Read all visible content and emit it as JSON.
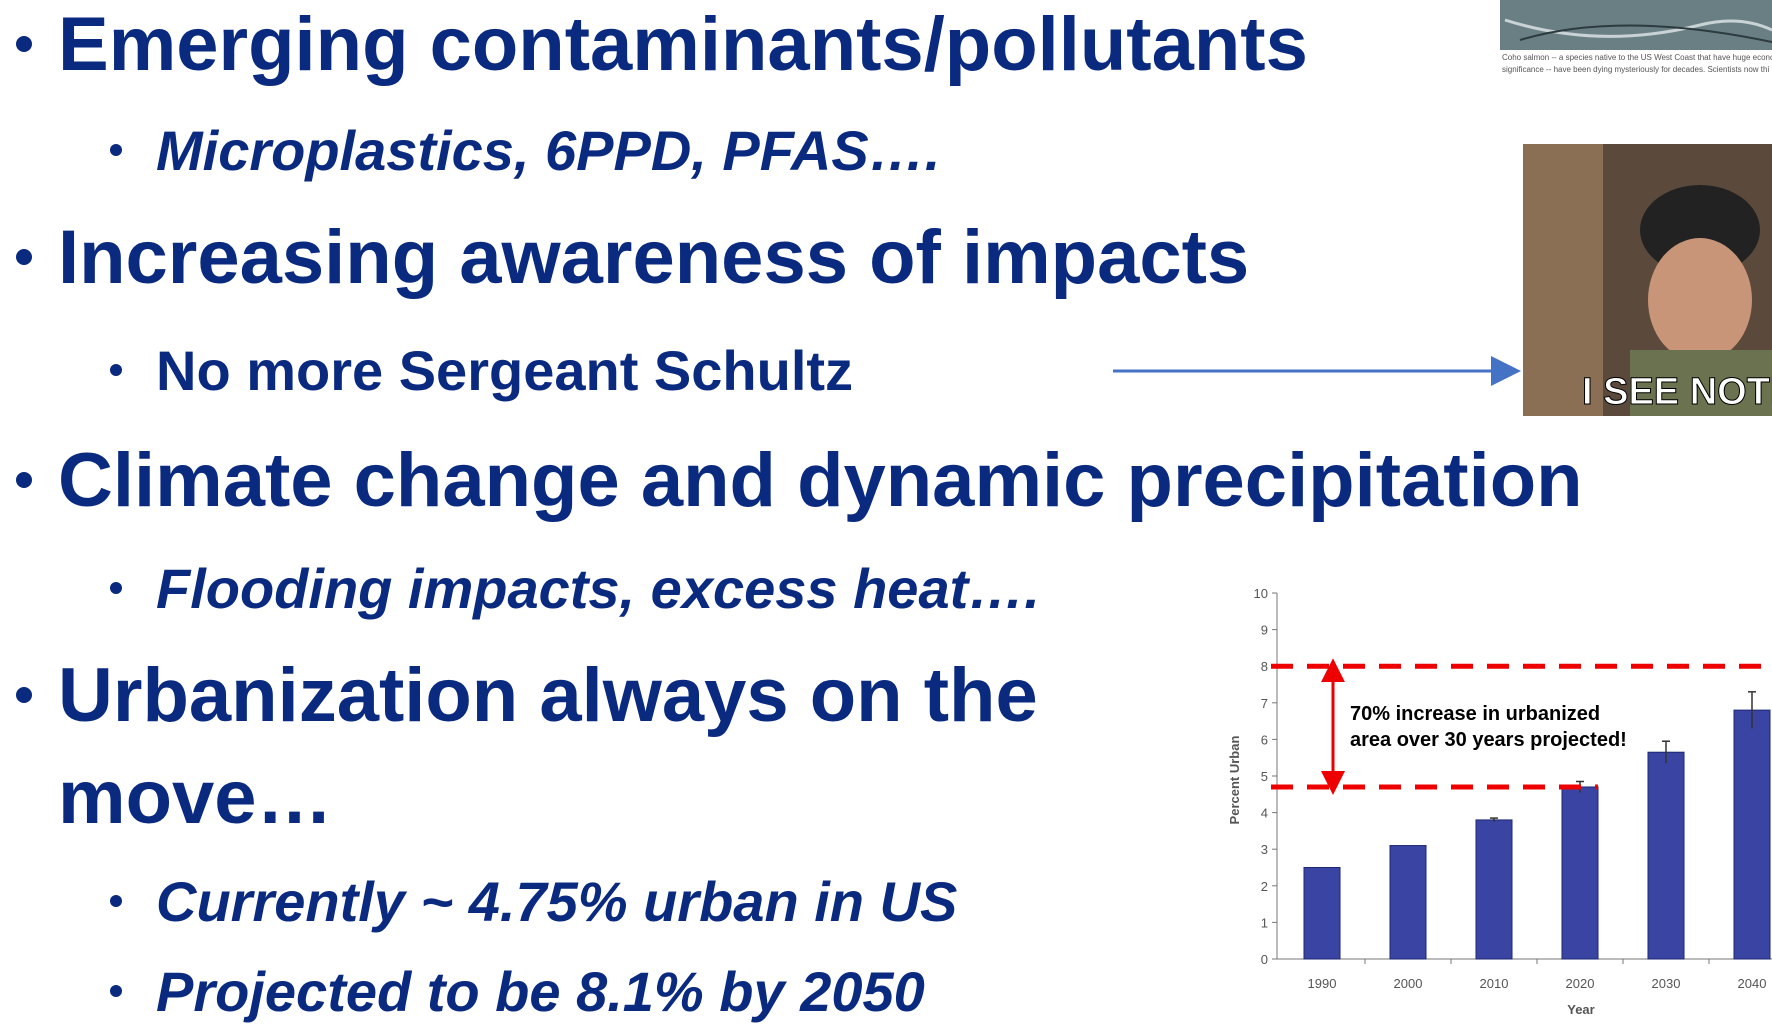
{
  "slide": {
    "bullets": [
      {
        "level": 1,
        "lines": [
          "Emerging contaminants/pollutants"
        ]
      },
      {
        "level": 2,
        "italic": true,
        "lines": [
          "Microplastics, 6PPD, PFAS…."
        ]
      },
      {
        "level": 1,
        "lines": [
          "Increasing awareness of impacts"
        ]
      },
      {
        "level": 2,
        "lines": [
          "No more Sergeant Schultz"
        ]
      },
      {
        "level": 1,
        "lines": [
          "Climate change and dynamic precipitation"
        ]
      },
      {
        "level": 2,
        "italic": true,
        "lines": [
          "Flooding impacts, excess heat…."
        ]
      },
      {
        "level": 1,
        "lines": [
          "Urbanization always on the",
          "move…"
        ]
      },
      {
        "level": 2,
        "italic": true,
        "lines": [
          "Currently ~ 4.75% urban in US"
        ]
      },
      {
        "level": 2,
        "italic": true,
        "lines": [
          "Projected to be 8.1% by 2050"
        ]
      }
    ],
    "salmon_caption": [
      "Coho salmon -- a species native to the US West Coast that have huge econo",
      "significance -- have been dying mysteriously for decades. Scientists now thi"
    ],
    "meme_caption": "I SEE NOTHI"
  },
  "chart_data": {
    "type": "bar",
    "categories": [
      "1990",
      "2000",
      "2010",
      "2020",
      "2030",
      "2040"
    ],
    "values": [
      2.5,
      3.1,
      3.8,
      4.7,
      5.65,
      6.8
    ],
    "errors": [
      0,
      0,
      0.05,
      0.15,
      0.3,
      0.5
    ],
    "color": "#3a45a3",
    "ylim": [
      0,
      10
    ],
    "yticks": [
      0,
      1,
      2,
      3,
      4,
      5,
      6,
      7,
      8,
      9,
      10
    ],
    "ylabel": "Percent Urban",
    "xlabel": "Year",
    "reference_lines": [
      8,
      4.7
    ],
    "annotation": [
      "70% increase in urbanized",
      "area over 30 years projected!"
    ]
  }
}
